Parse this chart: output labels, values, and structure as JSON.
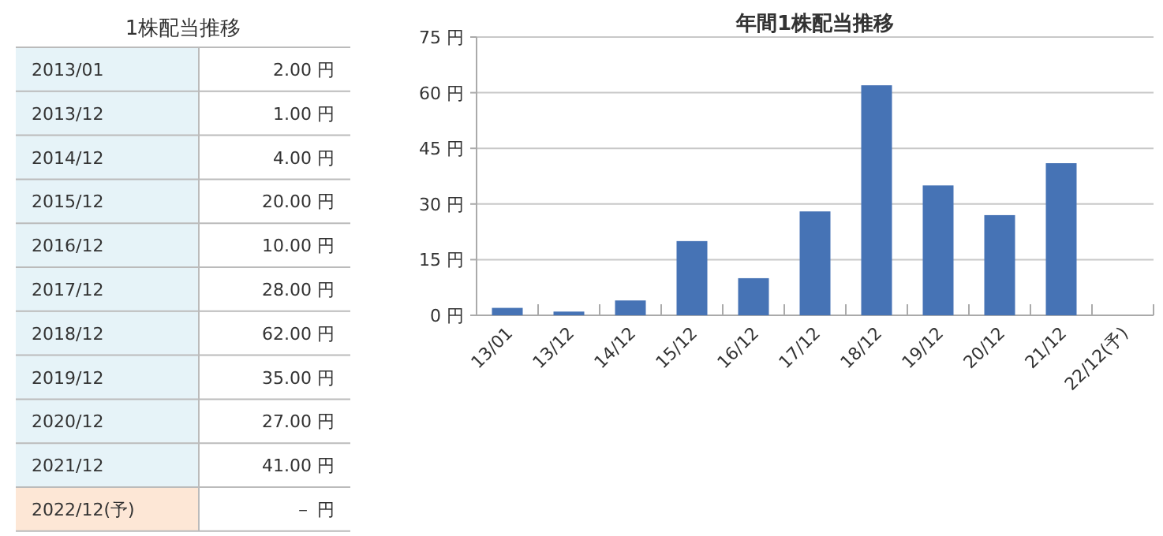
{
  "chart_data": [
    {
      "type": "other",
      "title": "1株配当推移",
      "categories": [
        "2013/01",
        "2013/12",
        "2014/12",
        "2015/12",
        "2016/12",
        "2017/12",
        "2018/12",
        "2019/12",
        "2020/12",
        "2021/12",
        "2022/12(予)"
      ],
      "value_labels": [
        "2.00 円",
        "1.00 円",
        "4.00 円",
        "20.00 円",
        "10.00 円",
        "28.00 円",
        "62.00 円",
        "35.00 円",
        "27.00 円",
        "41.00 円",
        "－ 円"
      ]
    },
    {
      "type": "bar",
      "title": "年間1株配当推移",
      "categories": [
        "13/01",
        "13/12",
        "14/12",
        "15/12",
        "16/12",
        "17/12",
        "18/12",
        "19/12",
        "20/12",
        "21/12",
        "22/12(予)"
      ],
      "series": [
        {
          "color": "#4673b5",
          "values": [
            2,
            1,
            4,
            20,
            10,
            28,
            62,
            35,
            27,
            41,
            null
          ]
        }
      ],
      "ylim": [
        0,
        75
      ],
      "yticks": [
        {
          "value": 0,
          "label": "0 円"
        },
        {
          "value": 15,
          "label": "15 円"
        },
        {
          "value": 30,
          "label": "30 円"
        },
        {
          "value": 45,
          "label": "45 円"
        },
        {
          "value": 60,
          "label": "60 円"
        },
        {
          "value": 75,
          "label": "75 円"
        }
      ],
      "grid": "y"
    }
  ]
}
